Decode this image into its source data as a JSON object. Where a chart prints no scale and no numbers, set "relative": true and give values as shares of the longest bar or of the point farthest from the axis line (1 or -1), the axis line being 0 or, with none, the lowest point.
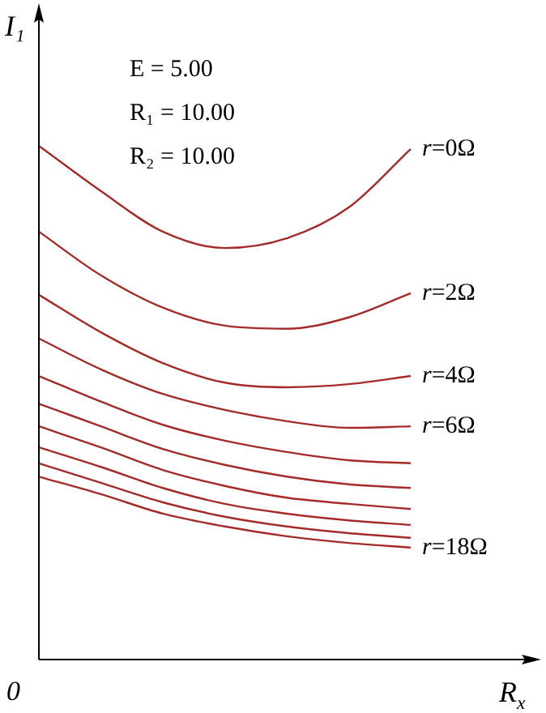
{
  "chart_data": {
    "type": "line",
    "relative": true,
    "xlabel": "R$_{x}$",
    "ylabel": "I₁",
    "annotations": [
      "E = 5.00",
      "R₁ = 10.00",
      "R₂ = 10.00",
      "0"
    ],
    "categories": [
      null,
      null,
      null,
      null,
      null,
      null,
      null,
      null,
      null
    ],
    "legend": false,
    "marker": "none",
    "line_style": "solid",
    "series": [
      {
        "name": "r=0Ω",
        "color": "#a52a2a",
        "values": [
          1.0,
          0.912,
          0.833,
          0.801,
          0.82,
          0.88,
          0.994,
          null,
          null
        ]
      },
      {
        "name": "r=2Ω",
        "color": "#a52a2a",
        "values": [
          0.833,
          0.748,
          0.685,
          0.65,
          0.644,
          0.666,
          0.713,
          null,
          null
        ]
      },
      {
        "name": "r=4Ω",
        "color": "#a52a2a",
        "values": [
          0.71,
          0.637,
          0.577,
          0.539,
          0.53,
          0.536,
          0.552,
          null,
          null
        ]
      },
      {
        "name": "r=6Ω",
        "color": "#a52a2a",
        "values": [
          0.625,
          0.565,
          0.517,
          0.486,
          0.464,
          0.451,
          0.454,
          null,
          null
        ]
      },
      {
        "color": "#a52a2a",
        "values": [
          0.552,
          0.502,
          0.457,
          0.426,
          0.404,
          0.388,
          0.382,
          null,
          null
        ]
      },
      {
        "color": "#a52a2a",
        "values": [
          0.498,
          0.454,
          0.41,
          0.379,
          0.356,
          0.341,
          0.334,
          null,
          null
        ]
      },
      {
        "color": "#a52a2a",
        "values": [
          0.454,
          0.413,
          0.369,
          0.338,
          0.315,
          0.303,
          0.293,
          null,
          null
        ]
      },
      {
        "color": "#a52a2a",
        "values": [
          0.413,
          0.375,
          0.334,
          0.303,
          0.284,
          0.271,
          0.262,
          null,
          null
        ]
      },
      {
        "color": "#a52a2a",
        "values": [
          0.382,
          0.344,
          0.306,
          0.278,
          0.259,
          0.246,
          0.237,
          null,
          null
        ]
      },
      {
        "name": "r=18Ω",
        "color": "#a52a2a",
        "values": [
          0.356,
          0.322,
          0.284,
          0.259,
          0.24,
          0.227,
          0.218,
          null,
          null
        ]
      }
    ]
  }
}
